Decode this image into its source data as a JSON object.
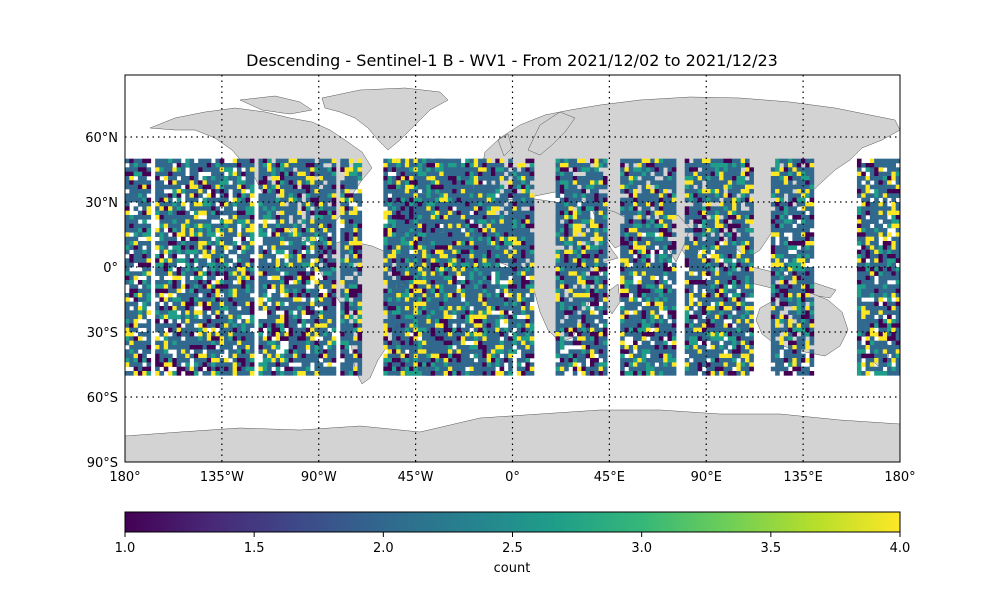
{
  "figure": {
    "title": "Descending - Sentinel-1 B - WV1 - From 2021/12/02 to 2021/12/23"
  },
  "map": {
    "projection": "equirectangular",
    "lon_range": [
      -180,
      180
    ],
    "lat_range": [
      -90,
      90
    ],
    "land_color": "#d3d3d3",
    "ocean_color": "#ffffff",
    "graticule": "dotted",
    "lon_tick_labels": [
      "180°",
      "135°W",
      "90°W",
      "45°W",
      "0°",
      "45°E",
      "90°E",
      "135°E",
      "180°"
    ],
    "lat_tick_labels": [
      "60°N",
      "30°N",
      "0°",
      "30°S",
      "60°S",
      "90°S"
    ]
  },
  "chart_data": {
    "type": "heatmap",
    "value_name": "count",
    "value_range": [
      1.0,
      4.0
    ],
    "colormap": "viridis",
    "data_lat_band": [
      -50,
      50
    ],
    "cell_size_deg": 2,
    "swath_bands_lon": [
      [
        -180,
        -168
      ],
      [
        -166,
        -120
      ],
      [
        -118,
        -82
      ],
      [
        -80,
        -70
      ],
      [
        -60,
        -38
      ],
      [
        -54,
        -28
      ],
      [
        -40,
        -10
      ],
      [
        -18,
        10
      ],
      [
        20,
        44
      ],
      [
        50,
        62
      ],
      [
        60,
        76
      ],
      [
        80,
        112
      ],
      [
        120,
        140
      ],
      [
        160,
        180
      ]
    ]
  },
  "colorbar": {
    "label": "count",
    "tick_labels": [
      "1.0",
      "1.5",
      "2.0",
      "2.5",
      "3.0",
      "3.5",
      "4.0"
    ],
    "colors": [
      "#440154",
      "#482878",
      "#3e4989",
      "#31688e",
      "#26828e",
      "#1f9e89",
      "#35b779",
      "#6ece58",
      "#b5de2b",
      "#fde725"
    ]
  }
}
